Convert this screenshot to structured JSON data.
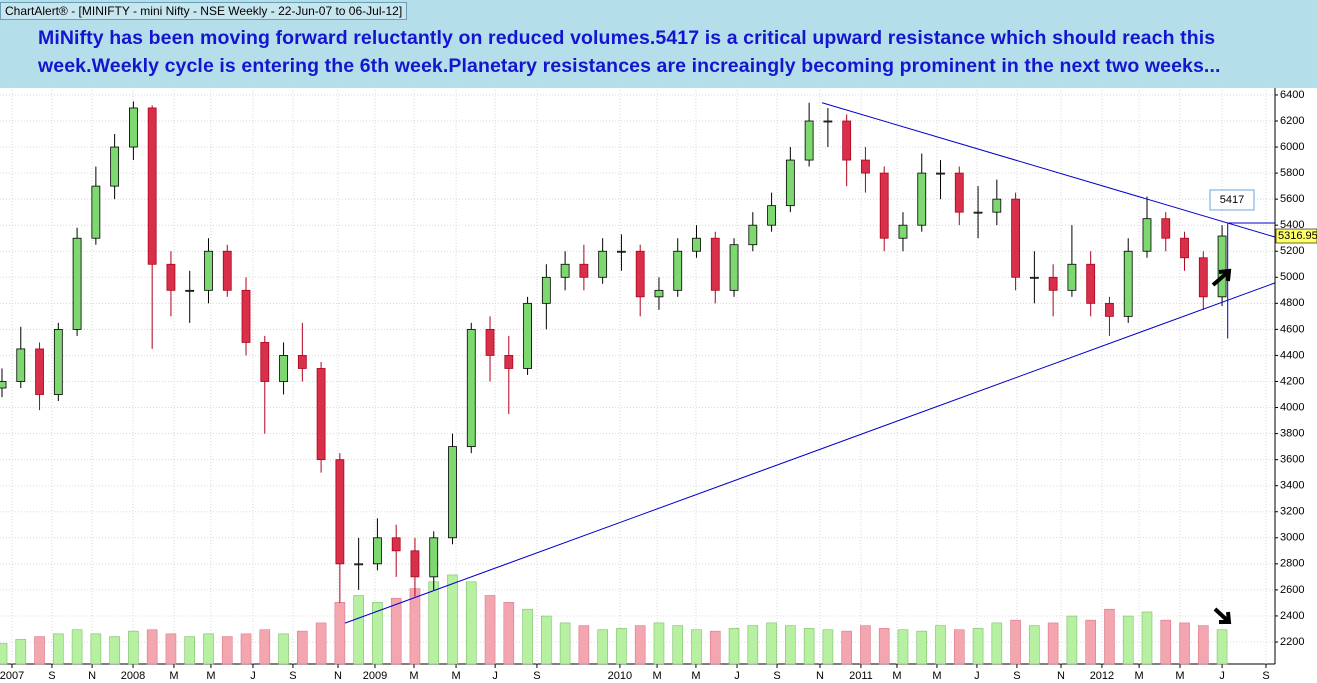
{
  "chart_data": {
    "type": "candlestick",
    "title": "ChartAlert® - [MINIFTY - mini Nifty - NSE Weekly - 22-Jun-07 to 06-Jul-12]",
    "annotation": "MiNifty has been moving forward reluctantly on reduced volumes.5417 is a critical upward resistance which should reach this week.Weekly cycle is entering the 6th week.Planetary resistances are increaingly becoming prominent in the next two weeks...",
    "categories": [
      null,
      null,
      null,
      null,
      null,
      null,
      null,
      null,
      null,
      null,
      null,
      null,
      null,
      null,
      null,
      null,
      null,
      null,
      null,
      null,
      null,
      null,
      null,
      null,
      null,
      null,
      null,
      null,
      null,
      null,
      null,
      null,
      null,
      null,
      null,
      null,
      null,
      null,
      null,
      null,
      null,
      null,
      null,
      null,
      null,
      null,
      null,
      null,
      null,
      null,
      null,
      null,
      null,
      null,
      null,
      null,
      null,
      null,
      null,
      null,
      null,
      null,
      null,
      null,
      null,
      null
    ],
    "open": [
      4150,
      4200,
      4450,
      4100,
      4600,
      5300,
      5700,
      6000,
      6300,
      5100,
      4900,
      4900,
      5200,
      4900,
      4500,
      4200,
      4400,
      4300,
      3600,
      2800,
      2800,
      3000,
      2900,
      2700,
      3000,
      3700,
      4600,
      4400,
      4300,
      4800,
      5000,
      5100,
      5000,
      5200,
      5200,
      4850,
      4900,
      5200,
      5300,
      4900,
      5250,
      5400,
      5550,
      5900,
      6200,
      6200,
      5900,
      5800,
      5300,
      5400,
      5800,
      5800,
      5500,
      5500,
      5600,
      5000,
      5000,
      4900,
      5100,
      4800,
      4700,
      5200,
      5450,
      5300,
      5150,
      4850
    ],
    "high": [
      4300,
      4620,
      4500,
      4650,
      5380,
      5850,
      6100,
      6350,
      6320,
      5200,
      5050,
      5300,
      5250,
      5000,
      4550,
      4500,
      4650,
      4350,
      3650,
      3000,
      3150,
      3100,
      3000,
      3050,
      3800,
      4650,
      4700,
      4550,
      4850,
      5100,
      5200,
      5250,
      5300,
      5330,
      5250,
      5000,
      5300,
      5400,
      5350,
      5300,
      5500,
      5650,
      6000,
      6340,
      6300,
      6250,
      6000,
      5850,
      5500,
      5950,
      5900,
      5850,
      5700,
      5750,
      5650,
      5200,
      5100,
      5400,
      5200,
      4850,
      5300,
      5620,
      5500,
      5350,
      5200,
      5400
    ],
    "low": [
      4080,
      4150,
      3980,
      4050,
      4550,
      5250,
      5600,
      5900,
      4450,
      4700,
      4650,
      4800,
      4850,
      4400,
      3800,
      4100,
      4200,
      3500,
      2500,
      2600,
      2750,
      2700,
      2550,
      2600,
      2950,
      3650,
      4200,
      3950,
      4250,
      4600,
      4900,
      4900,
      4950,
      5050,
      4700,
      4750,
      4850,
      5150,
      4800,
      4850,
      5200,
      5350,
      5500,
      5850,
      6000,
      5700,
      5650,
      5200,
      5200,
      5350,
      5600,
      5400,
      5300,
      5400,
      4900,
      4800,
      4700,
      4850,
      4700,
      4550,
      4650,
      5150,
      5200,
      5050,
      4750,
      4780
    ],
    "close": [
      4200,
      4450,
      4100,
      4600,
      5300,
      5700,
      6000,
      6300,
      5100,
      4900,
      4900,
      5200,
      4900,
      4500,
      4200,
      4400,
      4300,
      3600,
      2800,
      2800,
      3000,
      2900,
      2700,
      3000,
      3700,
      4600,
      4400,
      4300,
      4800,
      5000,
      5100,
      5000,
      5200,
      5200,
      4850,
      4900,
      5200,
      5300,
      4900,
      5250,
      5400,
      5550,
      5900,
      6200,
      6200,
      5900,
      5800,
      5300,
      5400,
      5800,
      5800,
      5500,
      5500,
      5600,
      5000,
      5000,
      4900,
      5100,
      4800,
      4700,
      5200,
      5450,
      5300,
      5150,
      4850,
      5316.95
    ],
    "volume": [
      15,
      18,
      20,
      22,
      25,
      22,
      20,
      24,
      25,
      22,
      20,
      22,
      20,
      22,
      25,
      22,
      24,
      30,
      45,
      50,
      45,
      48,
      55,
      60,
      65,
      60,
      50,
      45,
      40,
      35,
      30,
      28,
      25,
      26,
      28,
      30,
      28,
      25,
      24,
      26,
      28,
      30,
      28,
      26,
      25,
      24,
      28,
      26,
      25,
      24,
      28,
      25,
      26,
      30,
      32,
      28,
      30,
      35,
      32,
      40,
      35,
      38,
      32,
      30,
      28,
      25
    ],
    "volume_lim": [
      0,
      100
    ],
    "up_color": "#000000",
    "down_color": "#b0001a",
    "volume_up_color": "#b6f0a0",
    "volume_down_color": "#f4a6b0",
    "xlim": [
      -0.107,
      67.82
    ],
    "ylim": [
      2031,
      6461
    ],
    "yticks": [
      2200,
      2400,
      2600,
      2800,
      3000,
      3200,
      3400,
      3600,
      3800,
      4000,
      4200,
      4400,
      4600,
      4800,
      5000,
      5200,
      5400,
      5600,
      5800,
      6000,
      6200,
      6400
    ],
    "xticks": [
      {
        "value": 0.53,
        "label": "2007"
      },
      {
        "value": 2.66,
        "label": "S"
      },
      {
        "value": 4.8,
        "label": "N"
      },
      {
        "value": 6.98,
        "label": "2008"
      },
      {
        "value": 9.16,
        "label": "M"
      },
      {
        "value": 11.13,
        "label": "M"
      },
      {
        "value": 13.37,
        "label": "J"
      },
      {
        "value": 15.5,
        "label": "S"
      },
      {
        "value": 17.9,
        "label": "N"
      },
      {
        "value": 19.87,
        "label": "2009"
      },
      {
        "value": 21.95,
        "label": "M"
      },
      {
        "value": 24.19,
        "label": "M"
      },
      {
        "value": 26.27,
        "label": "J"
      },
      {
        "value": 28.5,
        "label": "S"
      },
      {
        "value": 32.92,
        "label": "2010"
      },
      {
        "value": 34.9,
        "label": "M"
      },
      {
        "value": 36.97,
        "label": "M"
      },
      {
        "value": 39.16,
        "label": "J"
      },
      {
        "value": 41.29,
        "label": "S"
      },
      {
        "value": 43.58,
        "label": "N"
      },
      {
        "value": 45.76,
        "label": "2011"
      },
      {
        "value": 47.68,
        "label": "M"
      },
      {
        "value": 49.81,
        "label": "M"
      },
      {
        "value": 51.94,
        "label": "J"
      },
      {
        "value": 54.07,
        "label": "S"
      },
      {
        "value": 56.42,
        "label": "N"
      },
      {
        "value": 58.6,
        "label": "2012"
      },
      {
        "value": 60.58,
        "label": "M"
      },
      {
        "value": 62.76,
        "label": "M"
      },
      {
        "value": 65,
        "label": "J"
      },
      {
        "value": 67.34,
        "label": "S"
      }
    ],
    "grid": true,
    "resistance": 5417,
    "line_color": "#0000cc",
    "lines": [
      {
        "x": [
          18.27,
          67.8
        ],
        "y": [
          2345,
          4956
        ]
      },
      {
        "x": [
          43.69,
          67.8
        ],
        "y": [
          6340,
          5310
        ]
      },
      {
        "x": [
          65.3,
          67.8
        ],
        "y": [
          5417,
          5417
        ]
      },
      {
        "x": [
          65.3,
          65.3
        ],
        "y": [
          5417,
          4530
        ]
      }
    ]
  }
}
